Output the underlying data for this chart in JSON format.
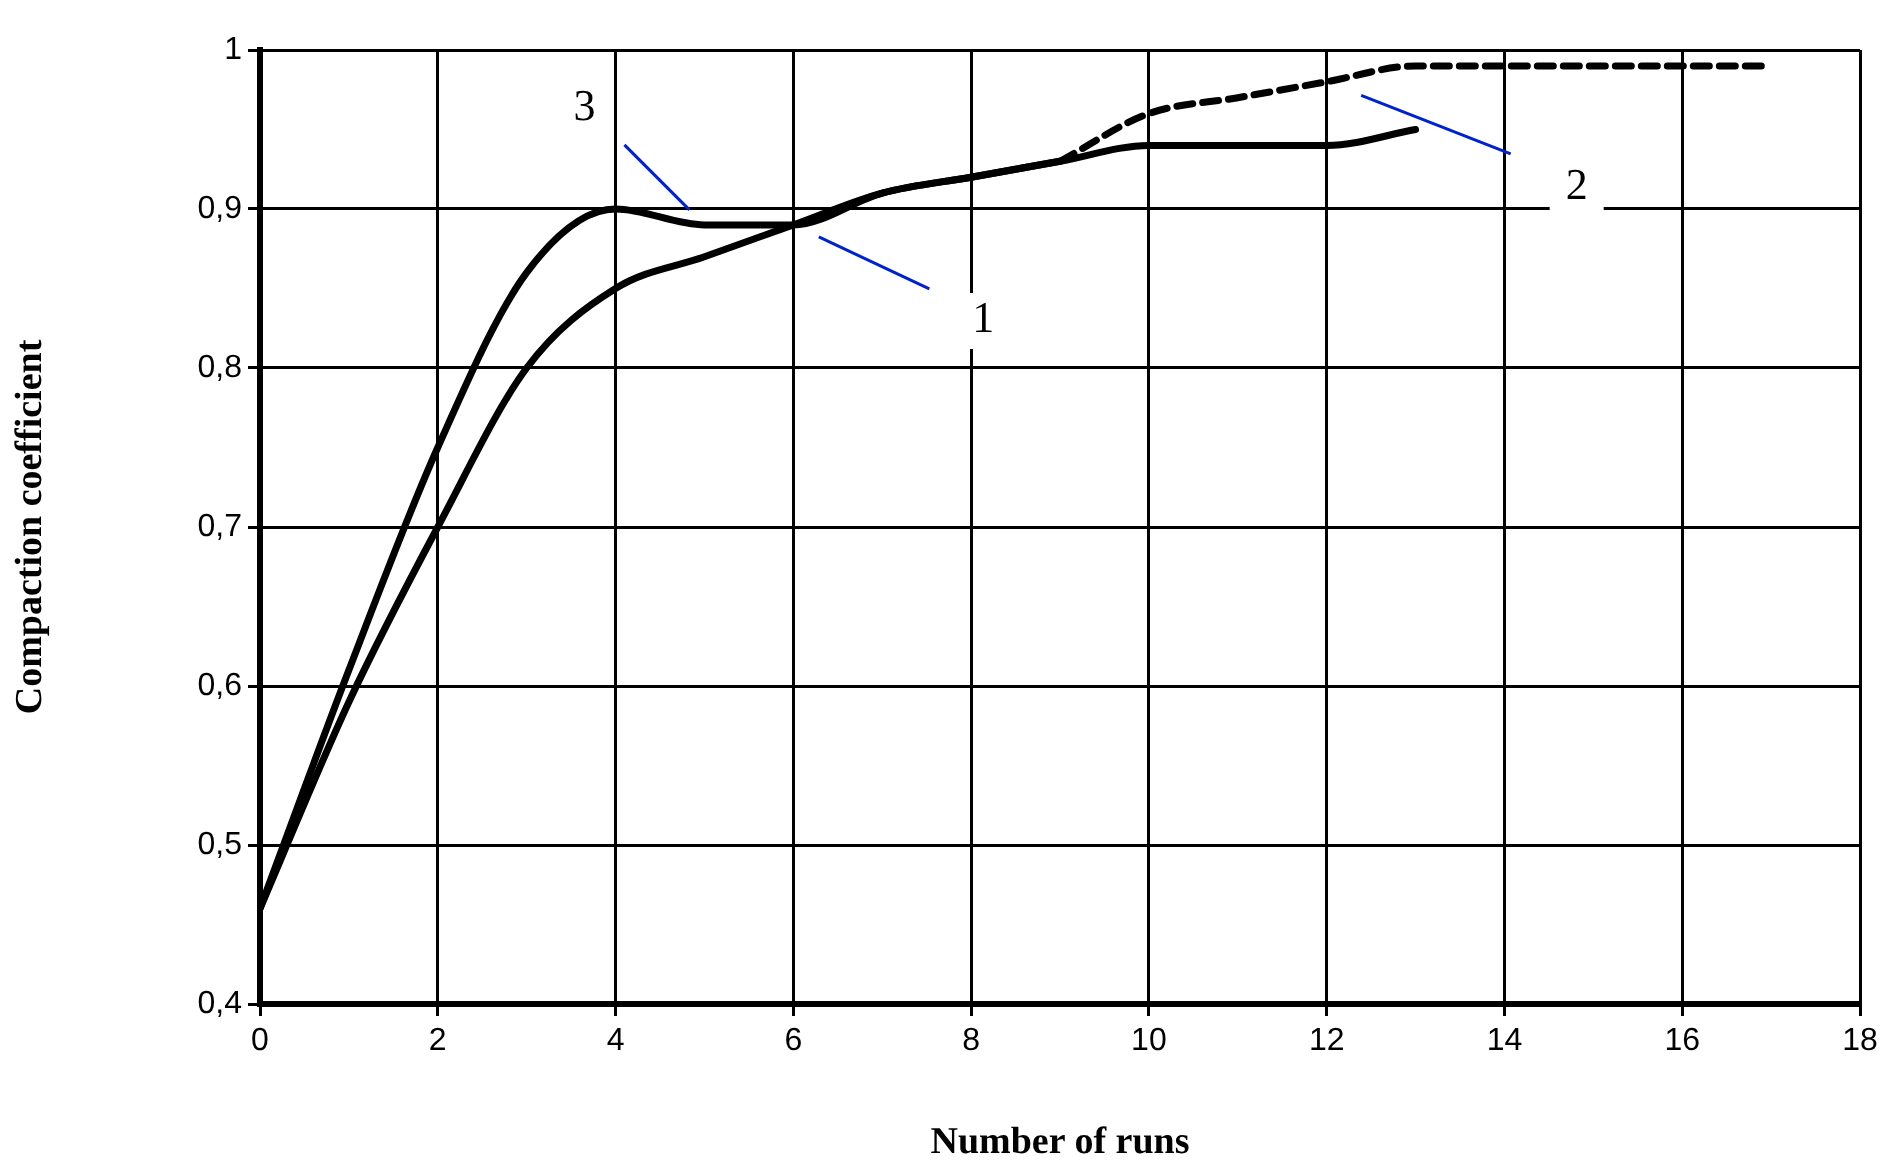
{
  "chart_data": {
    "type": "line",
    "xlabel": "Number of runs",
    "ylabel": "Compaction coefficient",
    "xlim": [
      0,
      18
    ],
    "xticks": [
      0,
      2,
      4,
      6,
      8,
      10,
      12,
      14,
      16,
      18
    ],
    "ylim": [
      0.4,
      1
    ],
    "yticks": [
      {
        "value": 0.4,
        "label": "0,4"
      },
      {
        "value": 0.5,
        "label": "0,5"
      },
      {
        "value": 0.6,
        "label": "0,6"
      },
      {
        "value": 0.7,
        "label": "0,7"
      },
      {
        "value": 0.8,
        "label": "0,8"
      },
      {
        "value": 0.9,
        "label": "0,9"
      },
      1
    ],
    "grid": true,
    "legend": false,
    "marker": "none",
    "series": [
      {
        "name": "1",
        "color": "#000000",
        "line_style": "solid",
        "x": [
          0,
          1,
          2,
          3,
          4,
          5,
          6,
          7,
          8,
          9,
          10,
          11,
          12,
          13
        ],
        "values": [
          0.46,
          0.59,
          0.7,
          0.8,
          0.85,
          0.87,
          0.89,
          0.91,
          0.92,
          0.93,
          0.94,
          0.94,
          0.94,
          0.95
        ]
      },
      {
        "name": "2",
        "color": "#000000",
        "line_style": "dashed",
        "x": [
          9,
          10,
          11,
          12,
          13,
          14,
          15,
          16,
          17
        ],
        "values": [
          0.93,
          0.96,
          0.97,
          0.98,
          0.99,
          0.99,
          0.99,
          0.99,
          0.99
        ]
      },
      {
        "name": "3",
        "color": "#000000",
        "line_style": "solid",
        "x": [
          0,
          1,
          2,
          3,
          4,
          5,
          6,
          7,
          8,
          9
        ],
        "values": [
          0.46,
          0.61,
          0.75,
          0.86,
          0.9,
          0.89,
          0.89,
          0.91,
          0.92,
          0.93
        ]
      }
    ]
  }
}
